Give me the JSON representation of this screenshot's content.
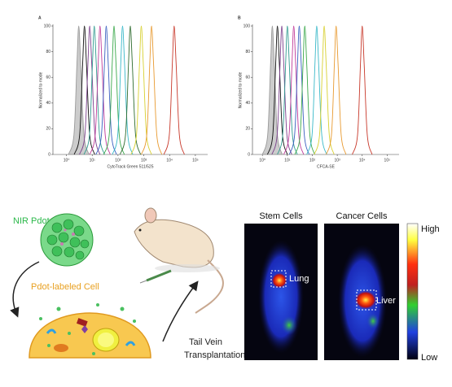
{
  "chart_data": [
    {
      "type": "line",
      "panel_label": "A",
      "ylabel": "Normalized to mode",
      "xlabel": "CytoTrack Green 511/525",
      "log_x": true,
      "xlim": [
        0.3,
        300000
      ],
      "ylim": [
        0,
        100
      ],
      "xticks": [
        {
          "value": 1,
          "label": "10⁰"
        },
        {
          "value": 10,
          "label": "10¹"
        },
        {
          "value": 100,
          "label": "10²"
        },
        {
          "value": 1000,
          "label": "10³"
        },
        {
          "value": 10000,
          "label": "10⁴"
        },
        {
          "value": 100000,
          "label": "10⁵"
        }
      ],
      "yticks": [
        0,
        20,
        40,
        60,
        80,
        100
      ],
      "series": [
        {
          "color": "#9a9a9a",
          "fill": true,
          "x": [
            1.2,
            1.95,
            2.55,
            3,
            3.6,
            4.8,
            7.5
          ],
          "values": [
            0,
            15,
            70,
            100,
            70,
            15,
            0
          ]
        },
        {
          "color": "#111111",
          "x": [
            2,
            3.25,
            4.25,
            5,
            6,
            8,
            12.5
          ],
          "values": [
            0,
            15,
            70,
            100,
            70,
            15,
            0
          ]
        },
        {
          "color": "#7b3f8c",
          "x": [
            3.2,
            5.2,
            6.8,
            8,
            9.6,
            12.8,
            20
          ],
          "values": [
            0,
            15,
            70,
            100,
            70,
            15,
            0
          ]
        },
        {
          "color": "#2f9a8f",
          "x": [
            4.8,
            7.8,
            10.2,
            12,
            14.4,
            19.2,
            30
          ],
          "values": [
            0,
            15,
            70,
            100,
            70,
            15,
            0
          ]
        },
        {
          "color": "#c03a9a",
          "x": [
            8,
            13,
            17,
            20,
            24,
            32,
            50
          ],
          "values": [
            0,
            15,
            70,
            100,
            70,
            15,
            0
          ]
        },
        {
          "color": "#3a5fc0",
          "x": [
            14,
            22.75,
            29.75,
            35,
            42,
            56,
            87.5
          ],
          "values": [
            0,
            15,
            70,
            100,
            70,
            15,
            0
          ]
        },
        {
          "color": "#3aa84a",
          "x": [
            28,
            45.5,
            59.5,
            70,
            84,
            112,
            175
          ],
          "values": [
            0,
            15,
            70,
            100,
            70,
            15,
            0
          ]
        },
        {
          "color": "#38b8c8",
          "x": [
            60,
            97.5,
            127.5,
            150,
            180,
            240,
            375
          ],
          "values": [
            0,
            15,
            70,
            100,
            70,
            15,
            0
          ]
        },
        {
          "color": "#2e6b2e",
          "x": [
            120,
            195,
            255,
            300,
            360,
            480,
            750
          ],
          "values": [
            0,
            15,
            70,
            100,
            70,
            15,
            0
          ]
        },
        {
          "color": "#d8d030",
          "x": [
            320,
            520,
            680,
            800,
            960,
            1280,
            2000
          ],
          "values": [
            0,
            15,
            70,
            100,
            70,
            15,
            0
          ]
        },
        {
          "color": "#e89a30",
          "x": [
            800,
            1300,
            1700,
            2000,
            2400,
            3200,
            5000
          ],
          "values": [
            0,
            15,
            70,
            100,
            70,
            15,
            0
          ]
        },
        {
          "color": "#c8382a",
          "x": [
            6000,
            9750,
            12750,
            15000,
            18000,
            24000,
            37500
          ],
          "values": [
            0,
            15,
            70,
            100,
            70,
            15,
            0
          ]
        }
      ]
    },
    {
      "type": "line",
      "panel_label": "B",
      "ylabel": "Normalized to mode",
      "xlabel": "CFCA-SE",
      "log_x": true,
      "xlim": [
        0.4,
        300000
      ],
      "ylim": [
        0,
        100
      ],
      "xticks": [
        {
          "value": 1,
          "label": "10⁰"
        },
        {
          "value": 10,
          "label": "10¹"
        },
        {
          "value": 100,
          "label": "10²"
        },
        {
          "value": 1000,
          "label": "10³"
        },
        {
          "value": 10000,
          "label": "10⁴"
        },
        {
          "value": 100000,
          "label": "10⁵"
        }
      ],
      "yticks": [
        0,
        20,
        40,
        60,
        80,
        100
      ],
      "series": [
        {
          "color": "#9a9a9a",
          "fill": true,
          "x": [
            1,
            1.625,
            2.125,
            2.5,
            3,
            4,
            6.25
          ],
          "values": [
            0,
            15,
            70,
            100,
            70,
            15,
            0
          ]
        },
        {
          "color": "#111111",
          "x": [
            1.6,
            2.6,
            3.4,
            4,
            4.8,
            6.4,
            10
          ],
          "values": [
            0,
            15,
            70,
            100,
            70,
            15,
            0
          ]
        },
        {
          "color": "#7b3f8c",
          "x": [
            2.4,
            3.9,
            5.1,
            6,
            7.2,
            9.6,
            15
          ],
          "values": [
            0,
            15,
            70,
            100,
            70,
            15,
            0
          ]
        },
        {
          "color": "#2f9a8f",
          "x": [
            4,
            6.5,
            8.5,
            10,
            12,
            16,
            25
          ],
          "values": [
            0,
            15,
            70,
            100,
            70,
            15,
            0
          ]
        },
        {
          "color": "#c03a9a",
          "x": [
            7.2,
            11.7,
            15.3,
            18,
            21.6,
            28.8,
            45
          ],
          "values": [
            0,
            15,
            70,
            100,
            70,
            15,
            0
          ]
        },
        {
          "color": "#3a5fc0",
          "x": [
            12,
            19.5,
            25.5,
            30,
            36,
            48,
            75
          ],
          "values": [
            0,
            15,
            70,
            100,
            70,
            15,
            0
          ]
        },
        {
          "color": "#3aa84a",
          "x": [
            20,
            32.5,
            42.5,
            50,
            60,
            80,
            125
          ],
          "values": [
            0,
            15,
            70,
            100,
            70,
            15,
            0
          ]
        },
        {
          "color": "#38b8c8",
          "x": [
            60,
            97.5,
            127.5,
            150,
            180,
            240,
            375
          ],
          "values": [
            0,
            15,
            70,
            100,
            70,
            15,
            0
          ]
        },
        {
          "color": "#d8d030",
          "x": [
            120,
            195,
            255,
            300,
            360,
            480,
            750
          ],
          "values": [
            0,
            15,
            70,
            100,
            70,
            15,
            0
          ]
        },
        {
          "color": "#e89a30",
          "x": [
            360,
            585,
            765,
            900,
            1080,
            1440,
            2250
          ],
          "values": [
            0,
            15,
            70,
            100,
            70,
            15,
            0
          ]
        },
        {
          "color": "#c8382a",
          "x": [
            4000,
            6500,
            8500,
            10000,
            12000,
            16000,
            25000
          ],
          "values": [
            0,
            15,
            70,
            100,
            70,
            15,
            0
          ]
        }
      ]
    }
  ],
  "diagram": {
    "pdot": "NIR Pdot",
    "cell": "Pdot-labeled Cell",
    "injection": [
      "Tail Vein",
      "Transplantation"
    ],
    "panels": [
      {
        "title": "Stem Cells",
        "organ": "Lung"
      },
      {
        "title": "Cancer Cells",
        "organ": "Liver"
      }
    ],
    "scale": {
      "high": "High",
      "low": "Low"
    }
  }
}
